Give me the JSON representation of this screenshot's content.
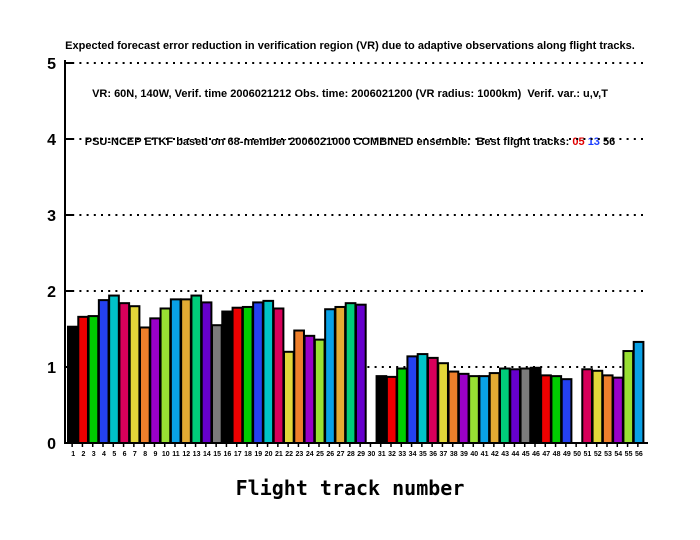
{
  "title": {
    "line1": "Expected forecast error reduction in verification region (VR) due to adaptive observations along flight tracks.",
    "line2": "VR: 60N, 140W, Verif. time 2006021212 Obs. time: 2006021200 (VR radius: 1000km)  Verif. var.: u,v,T",
    "line3_prefix": "PSU-NCEP ETKF based on 68-member 2006021000 COMBINED ensemble.  Best flight tracks: ",
    "best_tracks": [
      {
        "label": "05",
        "color": "#e00000"
      },
      {
        "label": "13",
        "color": "#1a3cff"
      },
      {
        "label": "56",
        "color": "#000000"
      }
    ]
  },
  "chart_data": {
    "type": "bar",
    "title": "Expected forecast error reduction in verification region (VR) due to adaptive observations along flight tracks.",
    "subtitle1": "VR: 60N, 140W, Verif. time 2006021212 Obs. time: 2006021200 (VR radius: 1000km)  Verif. var.: u,v,T",
    "subtitle2": "PSU-NCEP ETKF based on 68-member 2006021000 COMBINED ensemble.  Best flight tracks: 05 13 56",
    "xlabel": "Flight track number",
    "ylabel": "",
    "ylim": [
      0,
      5
    ],
    "yticks": [
      0,
      1,
      2,
      3,
      4,
      5
    ],
    "grid": "horizontal dotted lines at integer y values",
    "legend": "none",
    "categories": [
      1,
      2,
      3,
      4,
      5,
      6,
      7,
      8,
      9,
      10,
      11,
      12,
      13,
      14,
      15,
      16,
      17,
      18,
      19,
      20,
      21,
      22,
      23,
      24,
      25,
      26,
      27,
      28,
      29,
      30,
      31,
      32,
      33,
      34,
      35,
      36,
      37,
      38,
      39,
      40,
      41,
      42,
      43,
      44,
      45,
      46,
      47,
      48,
      49,
      50,
      51,
      52,
      53,
      54,
      55,
      56
    ],
    "values": [
      1.53,
      1.66,
      1.67,
      1.88,
      1.94,
      1.84,
      1.8,
      1.52,
      1.64,
      1.77,
      1.89,
      1.89,
      1.94,
      1.85,
      1.55,
      1.73,
      1.78,
      1.79,
      1.85,
      1.87,
      1.77,
      1.2,
      1.48,
      1.41,
      1.36,
      1.76,
      1.79,
      1.84,
      1.82,
      0,
      0.88,
      0.87,
      0.98,
      1.14,
      1.17,
      1.12,
      1.05,
      0.94,
      0.91,
      0.88,
      0.88,
      0.92,
      0.98,
      0.97,
      0.98,
      0.99,
      0.89,
      0.88,
      0.84,
      0,
      0.97,
      0.95,
      0.89,
      0.86,
      1.21,
      1.33
    ],
    "missing_tracks": [
      30,
      50
    ],
    "palette": [
      "#000000",
      "#ee0000",
      "#00cc00",
      "#2441f0",
      "#00c2c8",
      "#d8005a",
      "#e2d639",
      "#ee7f2b",
      "#9a00c8",
      "#99e033",
      "#09a1e6",
      "#e3ab33",
      "#00cc7a",
      "#6600cc",
      "#7b7b7b"
    ],
    "color_rule": "bar fill = palette[(track-1) mod 15], black outline",
    "bar_outline_color": "#000000",
    "axis_color": "#000000"
  }
}
